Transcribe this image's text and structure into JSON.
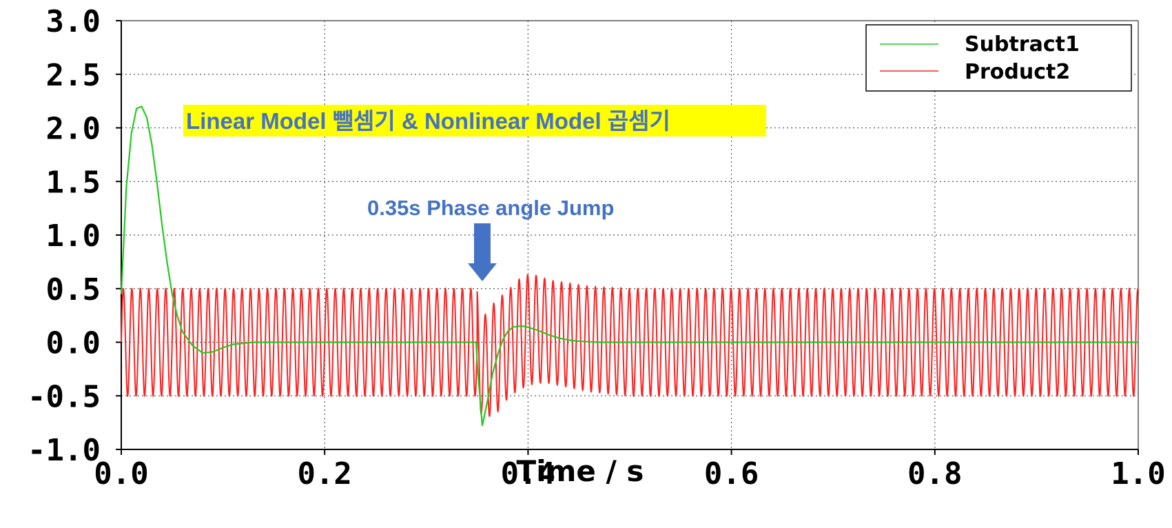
{
  "chart_data": {
    "type": "line",
    "xlabel": "Time / s",
    "ylabel": "",
    "xlim": [
      0.0,
      1.0
    ],
    "ylim": [
      -1.0,
      3.0
    ],
    "x_ticks": [
      "0.0",
      "0.2",
      "0.4",
      "0.6",
      "0.8",
      "1.0"
    ],
    "y_ticks": [
      "3.0",
      "2.5",
      "2.0",
      "1.5",
      "1.0",
      "0.5",
      "0.0",
      "-0.5",
      "-1.0"
    ],
    "grid": true,
    "legend_placement": "top-right",
    "series": [
      {
        "name": "Subtract1",
        "color": "#22c922",
        "x": [
          0.0,
          0.005,
          0.01,
          0.015,
          0.02,
          0.025,
          0.03,
          0.035,
          0.04,
          0.045,
          0.05,
          0.055,
          0.06,
          0.07,
          0.08,
          0.09,
          0.1,
          0.11,
          0.12,
          0.13,
          0.14,
          0.2,
          0.349,
          0.35,
          0.355,
          0.36,
          0.365,
          0.37,
          0.375,
          0.38,
          0.385,
          0.39,
          0.395,
          0.4,
          0.41,
          0.42,
          0.43,
          0.44,
          0.45,
          0.47,
          0.5,
          0.6,
          1.0
        ],
        "y": [
          0.45,
          1.45,
          1.95,
          2.18,
          2.2,
          2.1,
          1.85,
          1.5,
          1.1,
          0.75,
          0.45,
          0.25,
          0.1,
          -0.03,
          -0.1,
          -0.09,
          -0.05,
          -0.02,
          -0.01,
          0.0,
          0.0,
          0.0,
          0.0,
          -0.2,
          -0.78,
          -0.55,
          -0.3,
          -0.12,
          0.02,
          0.1,
          0.14,
          0.15,
          0.15,
          0.14,
          0.11,
          0.07,
          0.04,
          0.02,
          0.01,
          0.0,
          0.0,
          0.0,
          0.0
        ]
      },
      {
        "name": "Product2",
        "color": "#ff2020",
        "description_amplitude": 0.5,
        "frequency_hz": 120,
        "x": [
          0.0,
          0.35,
          0.355,
          0.36,
          0.37,
          0.38,
          0.39,
          0.4,
          0.41,
          0.42,
          0.44,
          0.46,
          0.5,
          1.0
        ],
        "envelope_upper": [
          0.5,
          0.5,
          0.2,
          0.3,
          0.4,
          0.48,
          0.58,
          0.63,
          0.62,
          0.58,
          0.55,
          0.52,
          0.5,
          0.5
        ],
        "envelope_lower": [
          -0.5,
          -0.5,
          -0.72,
          -0.7,
          -0.65,
          -0.52,
          -0.45,
          -0.4,
          -0.38,
          -0.38,
          -0.42,
          -0.46,
          -0.5,
          -0.5
        ]
      }
    ],
    "annotations": [
      {
        "text": "Linear Model 뺄셈기 & Nonlinear Model 곱셈기",
        "background": "#ffff00"
      },
      {
        "text": "0.35s Phase angle Jump",
        "arrow_at_x": 0.355
      }
    ]
  }
}
